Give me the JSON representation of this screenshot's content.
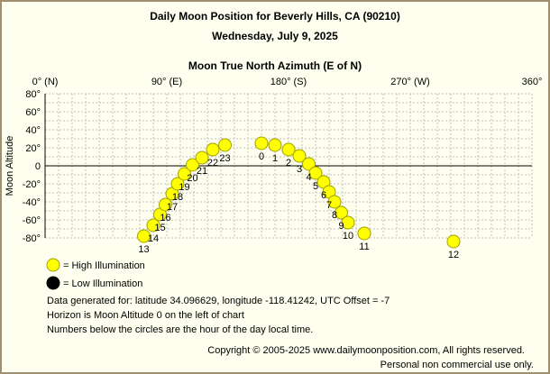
{
  "chart_data": {
    "type": "scatter",
    "title": "Daily Moon Position for Beverly Hills, CA (90210)",
    "subtitle": "Wednesday, July 9, 2025",
    "xlabel": "Moon True North Azimuth (E of N)",
    "ylabel": "Moon Altitude",
    "xlim": [
      0,
      360
    ],
    "ylim": [
      -80,
      80
    ],
    "grid": true,
    "x_ticks": [
      {
        "value": 0,
        "label": "0° (N)"
      },
      {
        "value": 90,
        "label": "90° (E)"
      },
      {
        "value": 180,
        "label": "180° (S)"
      },
      {
        "value": 270,
        "label": "270° (W)"
      },
      {
        "value": 360,
        "label": "360°"
      }
    ],
    "y_ticks": [
      {
        "value": 80,
        "label": "80°"
      },
      {
        "value": 60,
        "label": "60°"
      },
      {
        "value": 40,
        "label": "40°"
      },
      {
        "value": 20,
        "label": "20°"
      },
      {
        "value": 0,
        "label": "0"
      },
      {
        "value": -20,
        "label": "-20°"
      },
      {
        "value": -40,
        "label": "-40°"
      },
      {
        "value": -60,
        "label": "-60°"
      },
      {
        "value": -80,
        "label": "-80°"
      }
    ],
    "points": [
      {
        "hour": "13",
        "azimuth": 73,
        "altitude": -78
      },
      {
        "hour": "14",
        "azimuth": 80,
        "altitude": -66
      },
      {
        "hour": "15",
        "azimuth": 85,
        "altitude": -54
      },
      {
        "hour": "16",
        "azimuth": 89,
        "altitude": -43
      },
      {
        "hour": "17",
        "azimuth": 94,
        "altitude": -31
      },
      {
        "hour": "18",
        "azimuth": 98,
        "altitude": -20
      },
      {
        "hour": "19",
        "azimuth": 103,
        "altitude": -9
      },
      {
        "hour": "20",
        "azimuth": 109,
        "altitude": 1
      },
      {
        "hour": "21",
        "azimuth": 116,
        "altitude": 9
      },
      {
        "hour": "22",
        "azimuth": 124,
        "altitude": 18
      },
      {
        "hour": "23",
        "azimuth": 133,
        "altitude": 23
      },
      {
        "hour": "0",
        "azimuth": 160,
        "altitude": 25
      },
      {
        "hour": "1",
        "azimuth": 170,
        "altitude": 23
      },
      {
        "hour": "2",
        "azimuth": 180,
        "altitude": 18
      },
      {
        "hour": "3",
        "azimuth": 188,
        "altitude": 11
      },
      {
        "hour": "4",
        "azimuth": 195,
        "altitude": 2
      },
      {
        "hour": "5",
        "azimuth": 200,
        "altitude": -8
      },
      {
        "hour": "6",
        "azimuth": 206,
        "altitude": -18
      },
      {
        "hour": "7",
        "azimuth": 210,
        "altitude": -29
      },
      {
        "hour": "8",
        "azimuth": 214,
        "altitude": -40
      },
      {
        "hour": "9",
        "azimuth": 219,
        "altitude": -52
      },
      {
        "hour": "10",
        "azimuth": 224,
        "altitude": -63
      },
      {
        "hour": "11",
        "azimuth": 236,
        "altitude": -75
      },
      {
        "hour": "12",
        "azimuth": 302,
        "altitude": -84
      }
    ],
    "legend": [
      {
        "label": "= High Illumination",
        "color": "#ffff00"
      },
      {
        "label": "= Low Illumination",
        "color": "#000000"
      }
    ],
    "legend_position": "bottom-left",
    "colors": {
      "high": "#ffff00",
      "low": "#000000",
      "outline": "#a0a000"
    }
  },
  "notes": [
    "Data generated for: latitude 34.096629, longitude -118.41242, UTC Offset = -7",
    "Horizon is Moon Altitude 0 on the left of chart",
    "Numbers below the circles are the hour of the day local time."
  ],
  "copyright": "Copyright © 2005-2025 www.dailymoonposition.com, All rights reserved.",
  "usage": "Personal non commercial use only."
}
